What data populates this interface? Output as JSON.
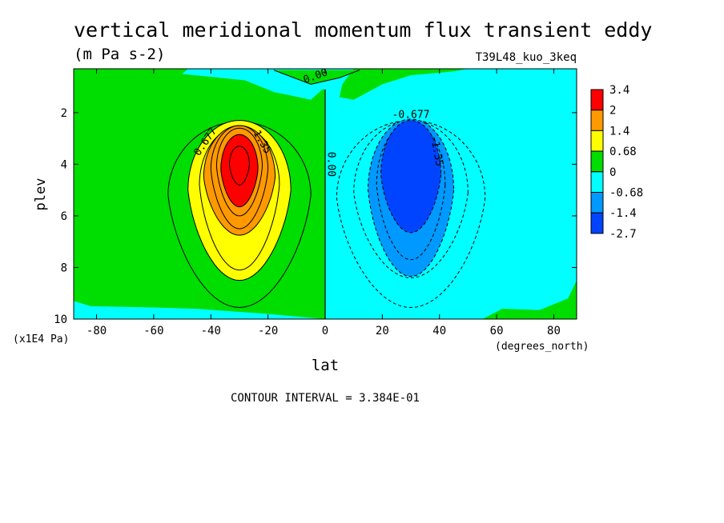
{
  "chart_data": {
    "type": "heatmap",
    "title": "vertical meridional momentum flux transient eddy",
    "units": "(m Pa s-2)",
    "run_label": "T39L48_kuo_3keq",
    "xlabel": "lat",
    "x_units": "(degrees_north)",
    "ylabel": "plev",
    "y_units": "(x1E4 Pa)",
    "xlim": [
      -88,
      88
    ],
    "ylim": [
      10,
      0.3
    ],
    "x_ticks": [
      -80,
      -60,
      -40,
      -20,
      0,
      20,
      40,
      60,
      80
    ],
    "x_tick_labels": [
      "-80",
      "-60",
      "-40",
      "-20",
      "0",
      "20",
      "40",
      "60",
      "80"
    ],
    "y_ticks": [
      2,
      4,
      6,
      8,
      10
    ],
    "y_tick_labels": [
      "2",
      "4",
      "6",
      "8",
      "10"
    ],
    "contour_interval_text": "CONTOUR INTERVAL = 3.384E-01",
    "colorbar": {
      "levels": [
        "3.4",
        "2",
        "1.4",
        "0.68",
        "0",
        "-0.68",
        "-1.4",
        "-2.7"
      ],
      "colors": [
        "#ff0000",
        "#ff9900",
        "#ffff00",
        "#00dd00",
        "#00ffff",
        "#0099ff",
        "#0044ff"
      ]
    },
    "contour_labels": [
      {
        "text": "0.677",
        "lat": -41,
        "plev": 3.2
      },
      {
        "text": "1.35",
        "lat": -23,
        "plev": 3.2
      },
      {
        "text": "0.00",
        "lat": 1,
        "plev": 4.0
      },
      {
        "text": "0.00",
        "lat": -3,
        "plev": 0.7
      },
      {
        "text": "-0.677",
        "lat": 30,
        "plev": 2.2
      },
      {
        "text": "-1.35",
        "lat": 38,
        "plev": 3.5
      }
    ],
    "features": [
      {
        "name": "positive maximum",
        "lat": -30,
        "plev": 3.9,
        "approx_value": 3.0
      },
      {
        "name": "negative minimum",
        "lat": 30,
        "plev": 3.9,
        "approx_value": -2.3
      }
    ]
  }
}
